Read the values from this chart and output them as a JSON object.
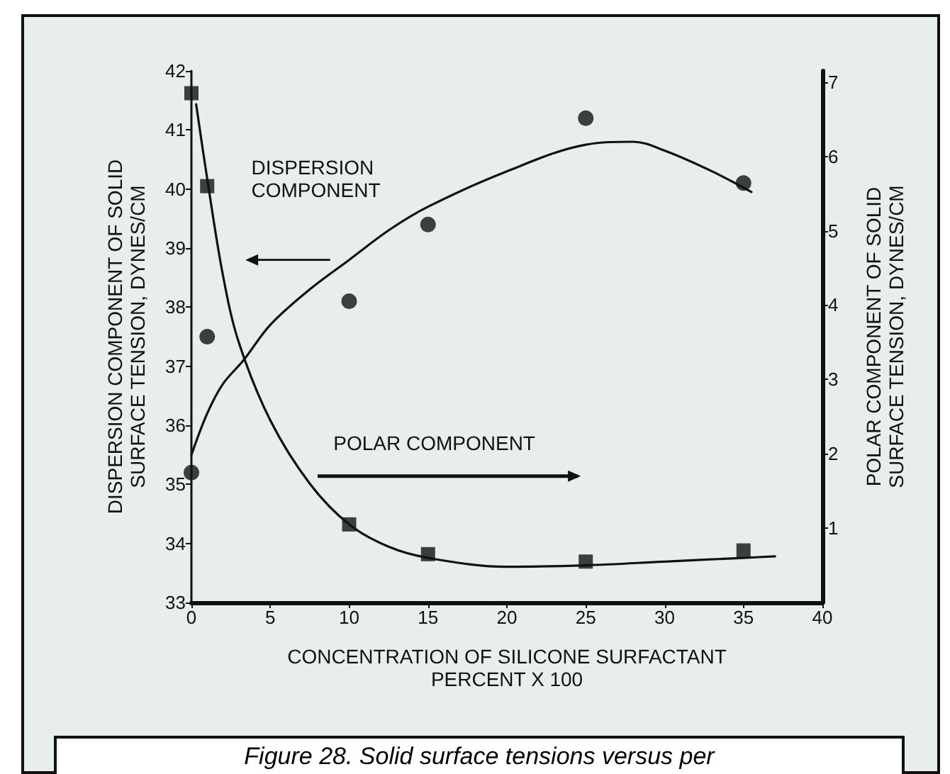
{
  "chart_data": {
    "type": "scatter",
    "xlabel": "CONCENTRATION OF SILICONE SURFACTANT\nPERCENT X 100",
    "ylabel": "DISPERSION COMPONENT OF SOLID\nSURFACE TENSION, DYNES/CM",
    "y2label": "POLAR COMPONENT OF SOLID\nSURFACE TENSION, DYNES/CM",
    "xlim": [
      0,
      40
    ],
    "xticks": [
      0,
      5,
      10,
      15,
      20,
      25,
      30,
      35,
      40
    ],
    "ylim": [
      33,
      42
    ],
    "yticks": [
      33,
      34,
      35,
      36,
      37,
      38,
      39,
      40,
      41,
      42
    ],
    "y2lim": [
      0,
      7.15
    ],
    "y2ticks": [
      1,
      2,
      3,
      4,
      5,
      6,
      7
    ],
    "grid": false,
    "series": [
      {
        "color": "#111111",
        "marker": "circle",
        "x": [
          0,
          1,
          10,
          15,
          25,
          35
        ],
        "values": [
          35.2,
          37.5,
          38.1,
          39.4,
          41.2,
          40.1
        ]
      },
      {
        "color": "#111111",
        "marker": "square",
        "axis": "y2",
        "x": [
          0,
          1,
          10,
          15,
          25,
          35
        ],
        "values": [
          6.85,
          5.6,
          1.05,
          0.65,
          0.55,
          0.7
        ]
      },
      {
        "type": "line",
        "color": "#111111",
        "marker": "none",
        "x": [
          0,
          1,
          2,
          3.3,
          5,
          7.5,
          10,
          12.5,
          15,
          20,
          25,
          28,
          30,
          33,
          35.5
        ],
        "values": [
          35.5,
          36.2,
          36.7,
          37.1,
          37.7,
          38.3,
          38.8,
          39.3,
          39.7,
          40.3,
          40.75,
          40.8,
          40.65,
          40.3,
          39.95
        ]
      },
      {
        "type": "line",
        "color": "#111111",
        "marker": "none",
        "axis": "y2",
        "x": [
          0.3,
          1,
          2,
          3,
          5,
          7.5,
          10,
          12.5,
          15,
          20,
          25,
          30,
          35,
          37
        ],
        "values": [
          6.7,
          5.7,
          4.4,
          3.5,
          2.45,
          1.6,
          1.05,
          0.75,
          0.6,
          0.48,
          0.5,
          0.55,
          0.6,
          0.62
        ]
      }
    ],
    "annotations": [
      "DISPERSION\nCOMPONENT",
      "POLAR COMPONENT",
      "Figure 28. Solid surface tensions versus per"
    ]
  }
}
